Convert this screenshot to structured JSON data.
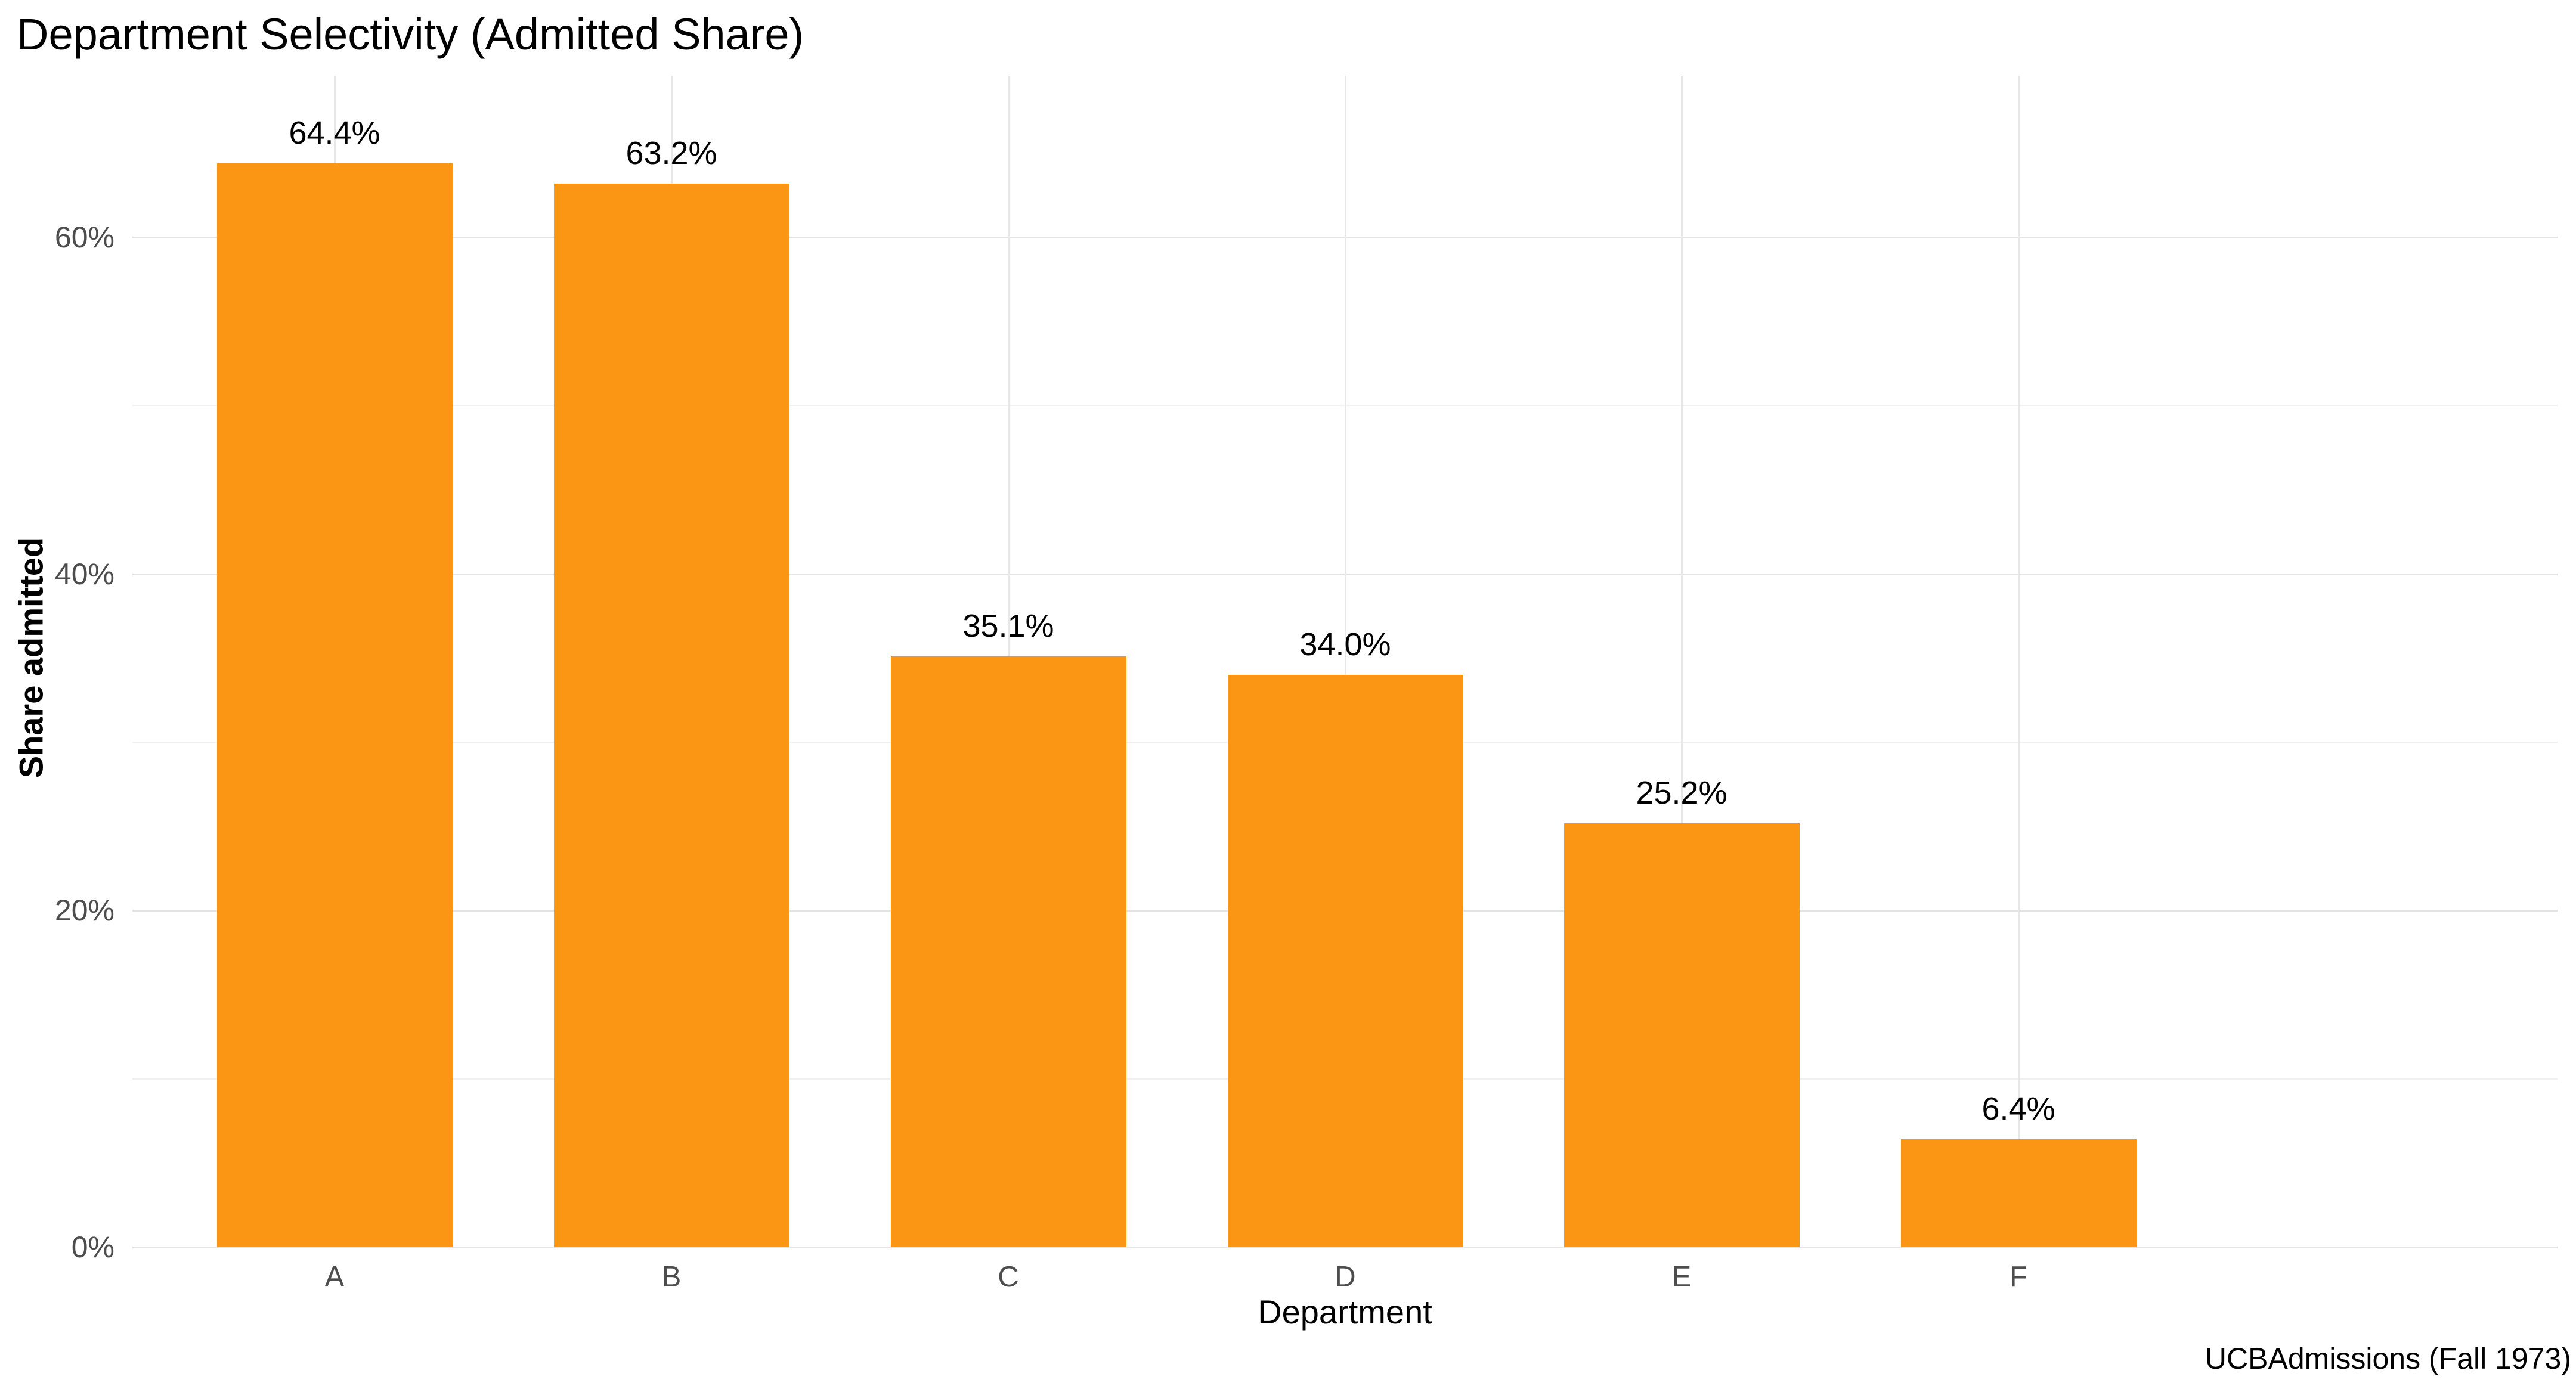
{
  "title": "Department Selectivity (Admitted Share)",
  "caption": "UCBAdmissions (Fall 1973)",
  "axes": {
    "x_title": "Department",
    "y_title": "Share admitted"
  },
  "chart_data": {
    "type": "bar",
    "title": "Department Selectivity (Admitted Share)",
    "xlabel": "Department",
    "ylabel": "Share admitted",
    "caption": "UCBAdmissions (Fall 1973)",
    "categories": [
      "A",
      "B",
      "C",
      "D",
      "E",
      "F"
    ],
    "values": [
      64.4,
      63.2,
      35.1,
      34.0,
      25.2,
      6.4
    ],
    "bar_labels": [
      "64.4%",
      "63.2%",
      "35.1%",
      "34.0%",
      "25.2%",
      "6.4%"
    ],
    "ylim": [
      0,
      69.6
    ],
    "yticks": [
      {
        "value": 0,
        "label": "0%"
      },
      {
        "value": 20,
        "label": "20%"
      },
      {
        "value": 40,
        "label": "40%"
      },
      {
        "value": 60,
        "label": "60%"
      }
    ],
    "yticks_minor": [
      10,
      30,
      50
    ],
    "grid": "horizontal major+minor, vertical at category centers",
    "legend": "none",
    "colors": {
      "bar": "#FA9614",
      "grid_major": "#E3E3E3",
      "grid_minor": "#F1F1F1",
      "grid_vertical": "#E7E7E7",
      "axis_text": "#4D4D4D",
      "text": "#000000",
      "background": "#FFFFFF"
    }
  }
}
